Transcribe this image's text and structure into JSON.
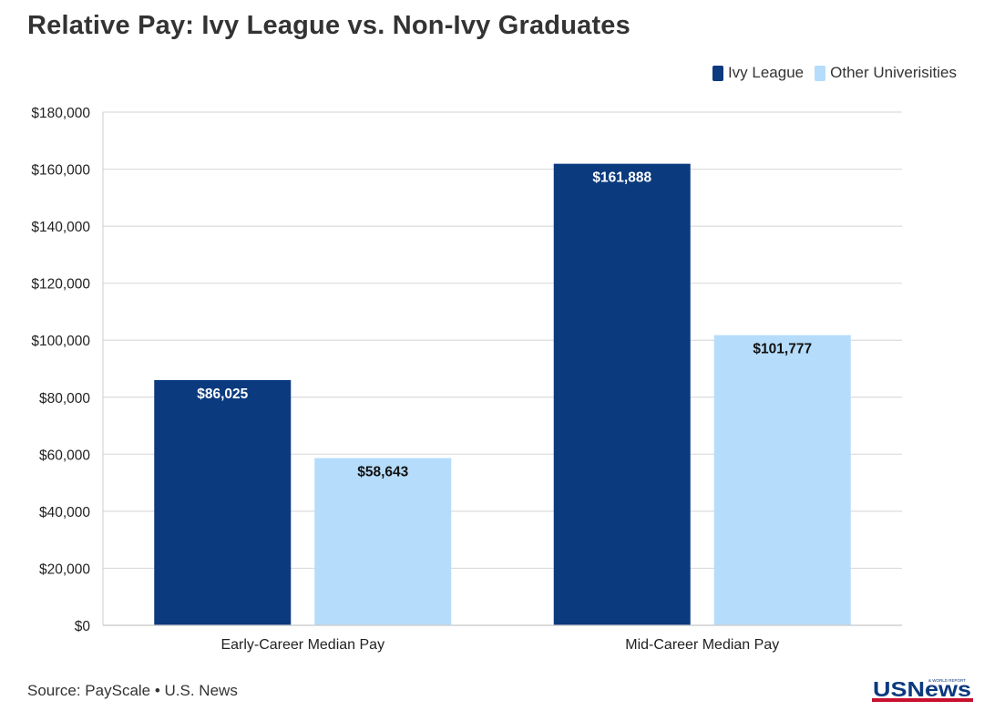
{
  "chart_data": {
    "type": "bar",
    "title": "Relative Pay: Ivy League vs. Non-Ivy Graduates",
    "categories": [
      "Early-Career Median Pay",
      "Mid-Career Median Pay"
    ],
    "series": [
      {
        "name": "Ivy League",
        "color": "#0b3a7e",
        "values": [
          86025,
          161888
        ],
        "labels": [
          "$86,025",
          "$161,888"
        ],
        "label_color": "#ffffff"
      },
      {
        "name": "Other Univerisities",
        "color": "#b5dcfb",
        "values": [
          58643,
          101777
        ],
        "labels": [
          "$58,643",
          "$101,777"
        ],
        "label_color": "#111111"
      }
    ],
    "ylim": [
      0,
      180000
    ],
    "yticks": [
      0,
      20000,
      40000,
      60000,
      80000,
      100000,
      120000,
      140000,
      160000,
      180000
    ],
    "ytick_labels": [
      "$0",
      "$20,000",
      "$40,000",
      "$60,000",
      "$80,000",
      "$100,000",
      "$120,000",
      "$140,000",
      "$160,000",
      "$180,000"
    ],
    "xlabel": "",
    "ylabel": "",
    "grid": true,
    "legend_position": "top-right"
  },
  "footer": {
    "source": "Source: PayScale • U.S. News",
    "logo_text": "USNews",
    "logo_small": "& WORLD REPORT"
  }
}
